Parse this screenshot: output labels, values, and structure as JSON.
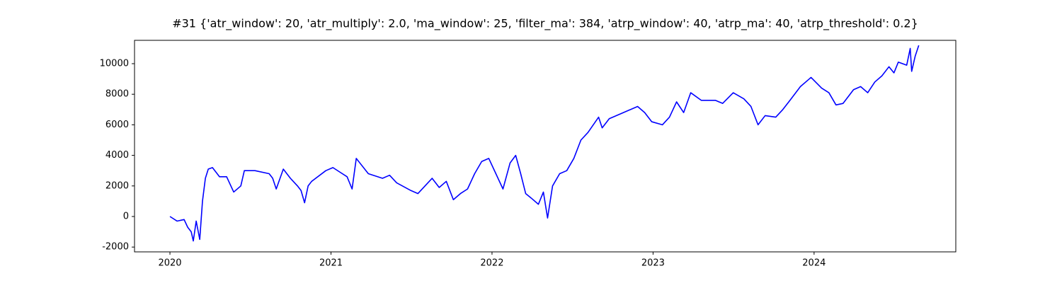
{
  "chart_data": {
    "type": "line",
    "title": "#31 {'atr_window': 20, 'atr_multiply': 2.0, 'ma_window': 25, 'filter_ma': 384, 'atrp_window': 40, 'atrp_ma': 40, 'atrp_threshold': 0.2}",
    "x": [
      2020.0,
      2020.044,
      2020.088,
      2020.11,
      2020.132,
      2020.145,
      2020.163,
      2020.185,
      2020.202,
      2020.22,
      2020.238,
      2020.264,
      2020.308,
      2020.352,
      2020.396,
      2020.44,
      2020.462,
      2020.528,
      2020.616,
      2020.638,
      2020.66,
      2020.704,
      2020.748,
      2020.792,
      2020.814,
      2020.836,
      2020.858,
      2020.88,
      2020.968,
      2021.012,
      2021.056,
      2021.1,
      2021.131,
      2021.157,
      2021.232,
      2021.32,
      2021.364,
      2021.408,
      2021.496,
      2021.54,
      2021.628,
      2021.672,
      2021.716,
      2021.76,
      2021.804,
      2021.848,
      2021.892,
      2021.936,
      2021.98,
      2022.024,
      2022.068,
      2022.112,
      2022.147,
      2022.178,
      2022.209,
      2022.244,
      2022.288,
      2022.319,
      2022.345,
      2022.376,
      2022.42,
      2022.464,
      2022.508,
      2022.552,
      2022.596,
      2022.662,
      2022.684,
      2022.728,
      2022.816,
      2022.904,
      2022.948,
      2022.992,
      2023.058,
      2023.102,
      2023.146,
      2023.19,
      2023.234,
      2023.3,
      2023.388,
      2023.432,
      2023.498,
      2023.564,
      2023.608,
      2023.652,
      2023.696,
      2023.762,
      2023.806,
      2023.85,
      2023.915,
      2023.981,
      2024.047,
      2024.092,
      2024.136,
      2024.18,
      2024.245,
      2024.289,
      2024.333,
      2024.377,
      2024.421,
      2024.465,
      2024.496,
      2024.523,
      2024.575,
      2024.597,
      2024.606,
      2024.628,
      2024.65
    ],
    "series": [
      {
        "color": "#0000ff",
        "values": [
          0,
          -300,
          -200,
          -700,
          -1000,
          -1600,
          -300,
          -1500,
          1000,
          2500,
          3100,
          3200,
          2600,
          2600,
          1600,
          2000,
          3000,
          3000,
          2800,
          2500,
          1800,
          3100,
          2500,
          2000,
          1700,
          900,
          2000,
          2300,
          3000,
          3200,
          2900,
          2600,
          1800,
          3800,
          2800,
          2500,
          2700,
          2200,
          1700,
          1500,
          2500,
          1900,
          2300,
          1100,
          1500,
          1800,
          2800,
          3600,
          3800,
          2800,
          1800,
          3500,
          4000,
          2800,
          1500,
          1200,
          800,
          1600,
          -100,
          2000,
          2800,
          3000,
          3800,
          5000,
          5500,
          6500,
          5800,
          6400,
          6800,
          7200,
          6800,
          6200,
          6000,
          6500,
          7500,
          6800,
          8100,
          7600,
          7600,
          7400,
          8100,
          7700,
          7200,
          6000,
          6600,
          6500,
          7000,
          7600,
          8500,
          9100,
          8400,
          8100,
          7300,
          7400,
          8300,
          8500,
          8100,
          8800,
          9200,
          9800,
          9400,
          10100,
          9900,
          11000,
          9500,
          10500,
          11200
        ]
      }
    ],
    "xlim": [
      2019.78,
      2024.88
    ],
    "xticks": [
      2020,
      2021,
      2022,
      2023,
      2024
    ],
    "ylim": [
      -2315,
      11528
    ],
    "yticks": [
      -2000,
      0,
      2000,
      4000,
      6000,
      8000,
      10000
    ]
  }
}
